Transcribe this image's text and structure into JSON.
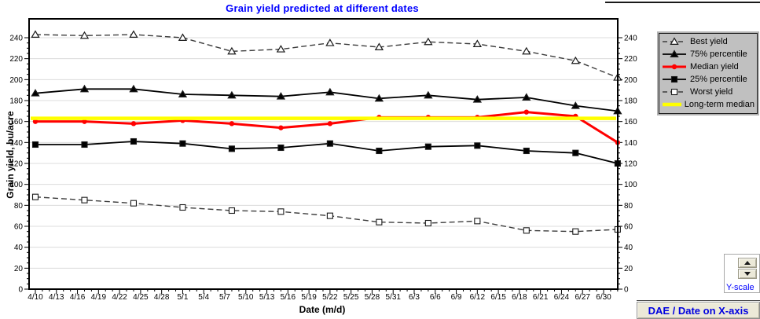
{
  "chart_data": {
    "type": "line",
    "title": "Grain yield predicted at different dates",
    "xlabel": "Date (m/d)",
    "ylabel": "Grain yield, bu/acre",
    "ylim": [
      0,
      240
    ],
    "y_tick_step": 20,
    "grid": "horizontal-light-gray",
    "legend_position": "outside-right",
    "x_tick_labels": [
      "4/10",
      "4/13",
      "4/16",
      "4/19",
      "4/22",
      "4/25",
      "4/28",
      "5/1",
      "5/4",
      "5/7",
      "5/10",
      "5/13",
      "5/16",
      "5/19",
      "5/22",
      "5/25",
      "5/28",
      "5/31",
      "6/3",
      "6/6",
      "6/9",
      "6/12",
      "6/15",
      "6/18",
      "6/21",
      "6/24",
      "6/27",
      "6/30"
    ],
    "x_tick_day_step": 3,
    "series_day_offsets": [
      0,
      7,
      14,
      21,
      28,
      35,
      42,
      49,
      56,
      63,
      70,
      77,
      83
    ],
    "series": [
      {
        "name": "Best yield",
        "color": "#3c3c3c",
        "line": "dashed",
        "width": 1.4,
        "marker": "triangle-open",
        "values": [
          243,
          242,
          243,
          240,
          227,
          229,
          235,
          231,
          236,
          234,
          227,
          218,
          202
        ]
      },
      {
        "name": "75% percentile",
        "color": "#000000",
        "line": "solid",
        "width": 1.8,
        "marker": "triangle-filled",
        "values": [
          187,
          191,
          191,
          186,
          185,
          184,
          188,
          182,
          185,
          181,
          183,
          175,
          170
        ]
      },
      {
        "name": "Median yield",
        "color": "#ff0000",
        "line": "solid",
        "width": 3,
        "marker": "circle",
        "values": [
          160,
          160,
          158,
          161,
          158,
          154,
          158,
          164,
          164,
          164,
          169,
          165,
          140
        ]
      },
      {
        "name": "25% percentile",
        "color": "#000000",
        "line": "solid",
        "width": 1.8,
        "marker": "square-filled",
        "values": [
          138,
          138,
          141,
          139,
          134,
          135,
          139,
          132,
          136,
          137,
          132,
          130,
          120
        ]
      },
      {
        "name": "Worst yield",
        "color": "#3c3c3c",
        "line": "dashed",
        "width": 1.4,
        "marker": "square-open",
        "values": [
          88,
          85,
          82,
          78,
          75,
          74,
          70,
          64,
          63,
          65,
          56,
          55,
          57
        ]
      },
      {
        "name": "Long-term median",
        "color": "#ffff00",
        "line": "solid",
        "width": 4.5,
        "marker": "none",
        "constant": 163
      }
    ]
  },
  "controls": {
    "y_scale": {
      "label": "Y-scale"
    },
    "dae_button": {
      "label": "DAE / Date on X-axis"
    }
  },
  "colors": {
    "title": "#0000ff",
    "legend_bg": "#c0c0c0",
    "button_face": "#ece9d8",
    "accent_red": "#ff0000",
    "accent_yellow": "#ffff00"
  }
}
